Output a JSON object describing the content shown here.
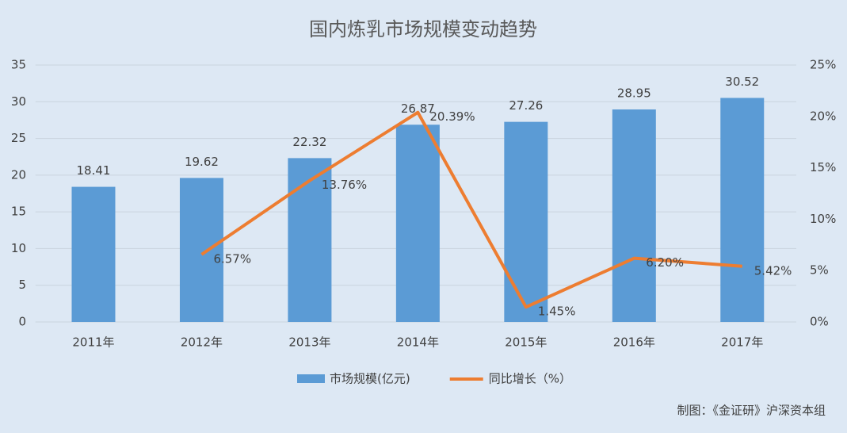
{
  "chart_data": {
    "type": "bar",
    "title": "国内炼乳市场规模变动趋势",
    "categories": [
      "2011年",
      "2012年",
      "2013年",
      "2014年",
      "2015年",
      "2016年",
      "2017年"
    ],
    "series": [
      {
        "name": "市场规模(亿元)",
        "type": "bar",
        "color": "#5b9bd5",
        "values": [
          18.41,
          19.62,
          22.32,
          26.87,
          27.26,
          28.95,
          30.52
        ]
      },
      {
        "name": "同比增长（%）",
        "type": "line",
        "axis": "y2",
        "color": "#ed7d31",
        "values": [
          null,
          6.57,
          13.76,
          20.39,
          1.45,
          6.2,
          5.42
        ],
        "value_labels": [
          null,
          "6.57%",
          "13.76%",
          "20.39%",
          "1.45%",
          "6.20%",
          "5.42%"
        ]
      }
    ],
    "ylim": [
      0,
      35
    ],
    "yticks": [
      0,
      5,
      10,
      15,
      20,
      25,
      30,
      35
    ],
    "y2lim": [
      0,
      25
    ],
    "y2ticks": [
      {
        "value": 0,
        "label": "0%"
      },
      {
        "value": 5,
        "label": "5%"
      },
      {
        "value": 10,
        "label": "10%"
      },
      {
        "value": 15,
        "label": "15%"
      },
      {
        "value": 20,
        "label": "20%"
      },
      {
        "value": 25,
        "label": "25%"
      }
    ],
    "grid": true,
    "legend": "bottom",
    "source": "制图：《金证研》沪深资本组"
  }
}
